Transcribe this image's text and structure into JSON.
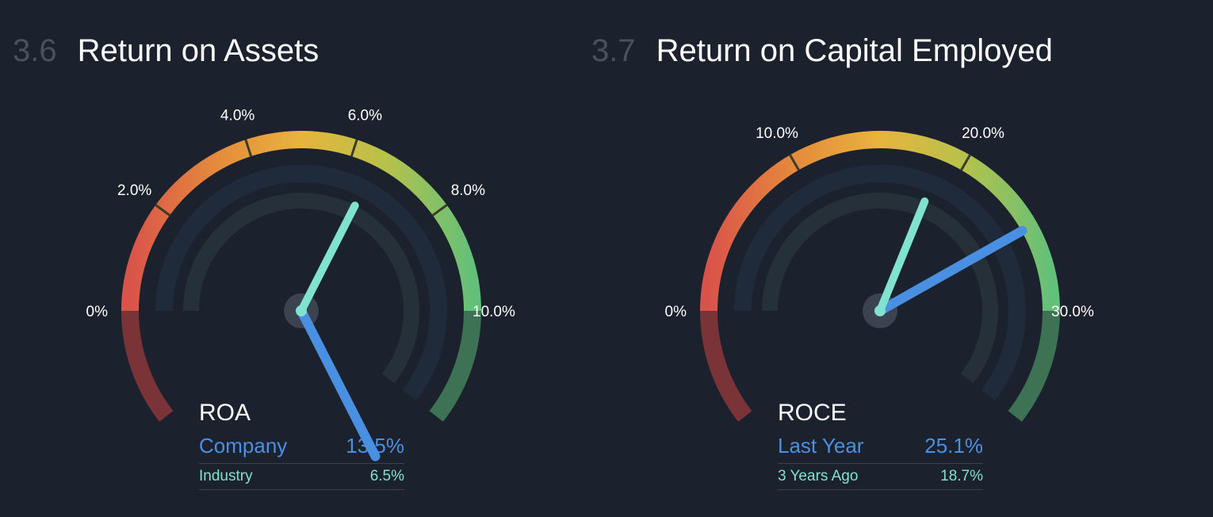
{
  "sections": [
    {
      "number": "3.6",
      "title": "Return on Assets",
      "chart_data": {
        "type": "gauge",
        "metric_label": "ROA",
        "min": 0,
        "max": 10,
        "tick_labels": [
          "0%",
          "2.0%",
          "4.0%",
          "6.0%",
          "8.0%",
          "10.0%"
        ],
        "tick_values": [
          0,
          2,
          4,
          6,
          8,
          10
        ],
        "series": [
          {
            "name": "Company",
            "value": 13.5,
            "display": "13.5%",
            "color": "#4a90e2"
          },
          {
            "name": "Industry",
            "value": 6.5,
            "display": "6.5%",
            "color": "#7fe3d0"
          }
        ]
      }
    },
    {
      "number": "3.7",
      "title": "Return on Capital Employed",
      "chart_data": {
        "type": "gauge",
        "metric_label": "ROCE",
        "min": 0,
        "max": 30,
        "tick_labels": [
          "0%",
          "10.0%",
          "20.0%",
          "30.0%"
        ],
        "tick_values": [
          0,
          10,
          20,
          30
        ],
        "series": [
          {
            "name": "Last Year",
            "value": 25.1,
            "display": "25.1%",
            "color": "#4a90e2"
          },
          {
            "name": "3 Years Ago",
            "value": 18.7,
            "display": "18.7%",
            "color": "#7fe3d0"
          }
        ]
      }
    }
  ],
  "colors": {
    "background": "#1b222d",
    "gauge_red": "#d9534a",
    "gauge_orange": "#e58a3c",
    "gauge_yellow": "#e8b43d",
    "gauge_lime": "#b5c24a",
    "gauge_green": "#63c07a"
  }
}
